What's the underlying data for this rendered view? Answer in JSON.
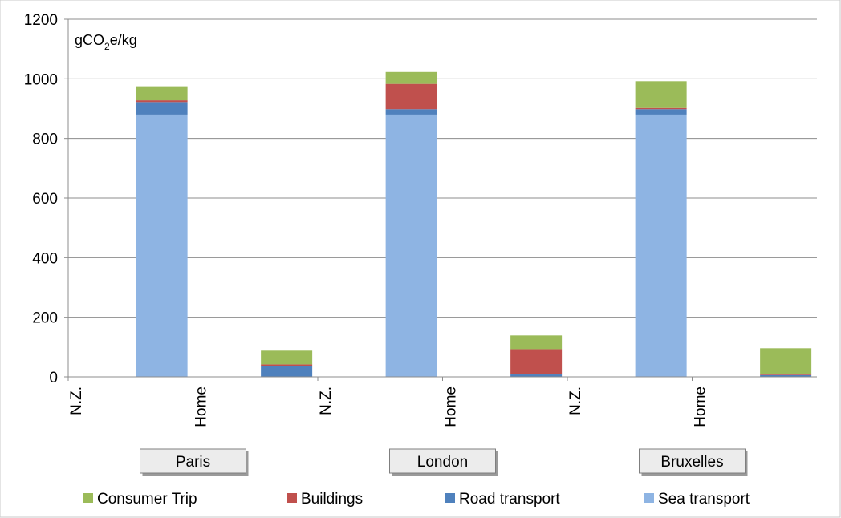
{
  "chart_data": {
    "type": "bar",
    "stacked": true,
    "unit_label": {
      "main": "gCO",
      "sub": "2",
      "tail": "e/kg"
    },
    "ylim": [
      0,
      1200
    ],
    "yticks": [
      "0",
      "200",
      "400",
      "600",
      "800",
      "1000",
      "1200"
    ],
    "grid": true,
    "categories": [
      "N.Z.",
      "Home",
      "N.Z.",
      "Home",
      "N.Z.",
      "Home"
    ],
    "groups": [
      "Paris",
      "London",
      "Bruxelles"
    ],
    "series": [
      {
        "name": "Sea transport",
        "color": "#8EB4E3",
        "values": [
          880,
          0,
          880,
          0,
          880,
          0
        ]
      },
      {
        "name": "Road transport",
        "color": "#4F81BD",
        "values": [
          42,
          36,
          18,
          8,
          18,
          6
        ]
      },
      {
        "name": "Buildings",
        "color": "#C0504D",
        "values": [
          6,
          6,
          85,
          85,
          4,
          2
        ]
      },
      {
        "name": "Consumer Trip",
        "color": "#9BBB59",
        "values": [
          47,
          46,
          40,
          46,
          90,
          88
        ]
      }
    ],
    "legend": {
      "placement": "bottom",
      "order": [
        "Consumer Trip",
        "Buildings",
        "Road transport",
        "Sea transport"
      ]
    }
  }
}
